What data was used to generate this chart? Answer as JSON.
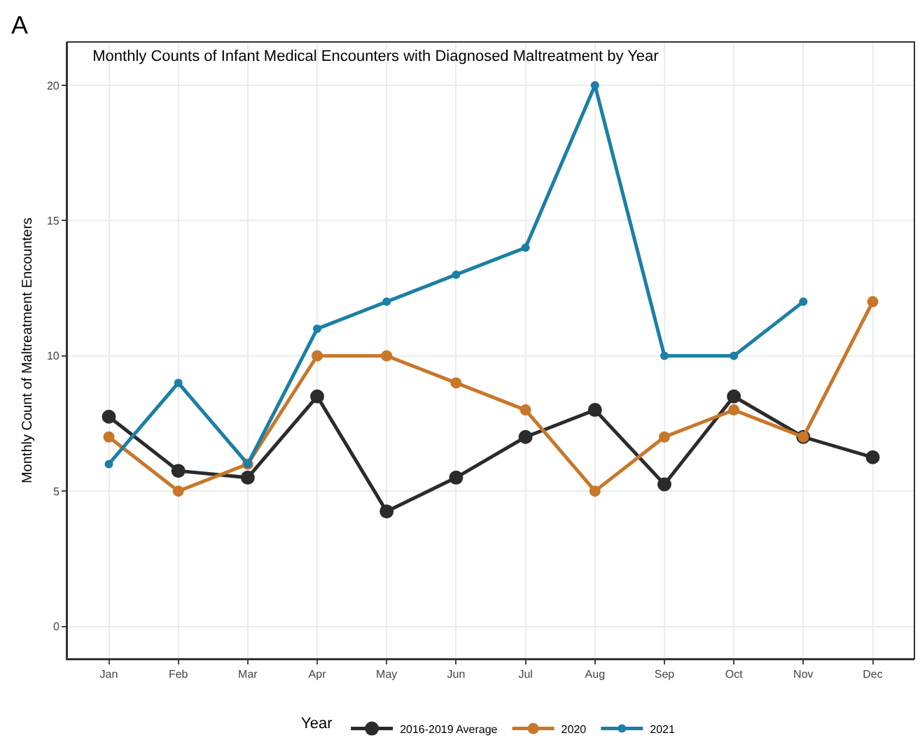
{
  "chart_data": {
    "type": "line",
    "title": "Monthly Counts of Infant Medical Encounters with Diagnosed Maltreatment by Year",
    "ylabel": "Monthly Count of Maltreatment Encounters",
    "legend_title": "Year",
    "annotations": [
      "A"
    ],
    "categories": [
      "Jan",
      "Feb",
      "Mar",
      "Apr",
      "May",
      "Jun",
      "Jul",
      "Aug",
      "Sep",
      "Oct",
      "Nov",
      "Dec"
    ],
    "series": [
      {
        "name": "2016-2019 Average",
        "color": "#2b2b2b",
        "values": [
          7.75,
          5.75,
          5.5,
          8.5,
          4.25,
          5.5,
          7,
          8,
          5.25,
          8.5,
          7,
          6.25
        ]
      },
      {
        "name": "2020",
        "color": "#c8772a",
        "values": [
          7,
          5,
          6,
          10,
          10,
          9,
          8,
          5,
          7,
          8,
          7,
          12
        ]
      },
      {
        "name": "2021",
        "color": "#1b7fa6",
        "values": [
          6,
          9,
          6,
          11,
          12,
          13,
          14,
          20,
          10,
          10,
          12,
          null
        ]
      }
    ],
    "ylim": [
      -1.2,
      21.6
    ],
    "yticks": [
      0,
      5,
      10,
      15,
      20
    ],
    "grid": true,
    "legend": "bottom",
    "marker": "circle",
    "line_style": "solid"
  }
}
